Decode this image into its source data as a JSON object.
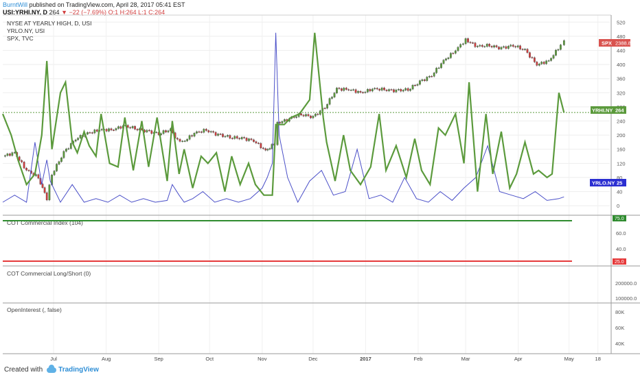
{
  "header": {
    "author": "BurntWill",
    "published": "published on TradingView.com, April 28, 2017 05:41 EST",
    "symbol": "USI:YRHI.NY, D",
    "last": "264",
    "change": "−22 (−7.69%)",
    "ohlc": "O:1 H:264 L:1 C:264"
  },
  "legend": {
    "main": "NYSE AT YEARLY HIGH, D, USI",
    "yrlo": "YRLO.NY, USI",
    "spx": "SPX, TVC"
  },
  "colors": {
    "green": "#5b9a3c",
    "blue": "#4a4fc8",
    "candle_up": "#5b9a3c",
    "candle_down": "#d23f3f",
    "spx_tag": "#d9534f",
    "yrlo_tag": "#2b2ed1",
    "level_high": "#2e8b2e",
    "level_low": "#e5393a"
  },
  "panes": {
    "cot_index": {
      "title": "COT Commercial Index (104)",
      "ticks": [
        "75.0",
        "60.0",
        "40.0",
        "25.0"
      ],
      "upper": 75,
      "lower": 25
    },
    "cot_longshort": {
      "title": "COT Commercial Long/Short (0)",
      "ticks": [
        "200000.0",
        "100000.0"
      ]
    },
    "open_interest": {
      "title": "OpenInterest (, false)",
      "ticks": [
        "80K",
        "60K",
        "40K"
      ]
    }
  },
  "chart_data": {
    "type": "line",
    "x_axis_labels": [
      "Jul",
      "Aug",
      "Sep",
      "Oct",
      "Nov",
      "Dec",
      "2017",
      "Feb",
      "Mar",
      "Apr",
      "May",
      "18"
    ],
    "x_range": [
      "2016-06-01",
      "2017-05-25"
    ],
    "y_ticks": [
      520,
      480,
      440,
      400,
      360,
      320,
      280,
      240,
      200,
      160,
      120,
      80,
      40,
      0
    ],
    "ylim": [
      -25,
      540
    ],
    "last_labels": {
      "spx": "2388.8",
      "yrhi": "YRHI.NY",
      "yrhi_value": "264",
      "yrlo": "YRLO.NY",
      "yrlo_value": "25"
    },
    "series": [
      {
        "name": "YRHI.NY",
        "dates": [
          "2016-06-01",
          "2016-06-06",
          "2016-06-10",
          "2016-06-15",
          "2016-06-20",
          "2016-06-24",
          "2016-06-27",
          "2016-06-30",
          "2016-07-05",
          "2016-07-08",
          "2016-07-12",
          "2016-07-15",
          "2016-07-19",
          "2016-07-22",
          "2016-07-26",
          "2016-07-29",
          "2016-08-03",
          "2016-08-08",
          "2016-08-12",
          "2016-08-17",
          "2016-08-22",
          "2016-08-26",
          "2016-08-31",
          "2016-09-06",
          "2016-09-09",
          "2016-09-13",
          "2016-09-16",
          "2016-09-21",
          "2016-09-26",
          "2016-09-30",
          "2016-10-05",
          "2016-10-10",
          "2016-10-14",
          "2016-10-19",
          "2016-10-24",
          "2016-10-28",
          "2016-11-02",
          "2016-11-07",
          "2016-11-09",
          "2016-11-14",
          "2016-11-18",
          "2016-11-23",
          "2016-11-29",
          "2016-12-02",
          "2016-12-07",
          "2016-12-09",
          "2016-12-14",
          "2016-12-19",
          "2016-12-23",
          "2016-12-29",
          "2017-01-04",
          "2017-01-09",
          "2017-01-13",
          "2017-01-19",
          "2017-01-25",
          "2017-01-30",
          "2017-02-03",
          "2017-02-08",
          "2017-02-13",
          "2017-02-17",
          "2017-02-23",
          "2017-02-28",
          "2017-03-03",
          "2017-03-08",
          "2017-03-13",
          "2017-03-17",
          "2017-03-22",
          "2017-03-27",
          "2017-03-31",
          "2017-04-05",
          "2017-04-10",
          "2017-04-13",
          "2017-04-18",
          "2017-04-21",
          "2017-04-25",
          "2017-04-28"
        ],
        "values": [
          260,
          200,
          130,
          60,
          90,
          200,
          410,
          160,
          320,
          350,
          180,
          150,
          210,
          170,
          140,
          260,
          120,
          110,
          250,
          100,
          240,
          110,
          250,
          70,
          240,
          90,
          160,
          50,
          140,
          120,
          150,
          40,
          140,
          60,
          120,
          60,
          30,
          30,
          230,
          230,
          250,
          260,
          300,
          490,
          250,
          180,
          70,
          200,
          100,
          60,
          110,
          260,
          100,
          170,
          80,
          190,
          100,
          60,
          220,
          200,
          260,
          120,
          350,
          40,
          260,
          90,
          210,
          50,
          90,
          180,
          90,
          100,
          80,
          90,
          320,
          264
        ]
      },
      {
        "name": "YRLO.NY",
        "dates": [
          "2016-06-01",
          "2016-06-08",
          "2016-06-15",
          "2016-06-20",
          "2016-06-24",
          "2016-06-27",
          "2016-06-29",
          "2016-07-05",
          "2016-07-12",
          "2016-07-19",
          "2016-07-26",
          "2016-08-02",
          "2016-08-09",
          "2016-08-16",
          "2016-08-23",
          "2016-08-30",
          "2016-09-06",
          "2016-09-09",
          "2016-09-13",
          "2016-09-16",
          "2016-09-21",
          "2016-09-27",
          "2016-10-04",
          "2016-10-11",
          "2016-10-18",
          "2016-10-25",
          "2016-11-01",
          "2016-11-04",
          "2016-11-07",
          "2016-11-09",
          "2016-11-11",
          "2016-11-16",
          "2016-11-22",
          "2016-11-29",
          "2016-12-06",
          "2016-12-13",
          "2016-12-20",
          "2016-12-27",
          "2017-01-03",
          "2017-01-10",
          "2017-01-17",
          "2017-01-24",
          "2017-01-31",
          "2017-02-07",
          "2017-02-14",
          "2017-02-21",
          "2017-02-28",
          "2017-03-07",
          "2017-03-14",
          "2017-03-21",
          "2017-03-28",
          "2017-04-04",
          "2017-04-11",
          "2017-04-18",
          "2017-04-25",
          "2017-04-28"
        ],
        "values": [
          10,
          30,
          10,
          180,
          60,
          130,
          70,
          10,
          60,
          10,
          20,
          10,
          30,
          10,
          20,
          10,
          15,
          60,
          30,
          10,
          20,
          40,
          10,
          20,
          10,
          20,
          50,
          80,
          120,
          490,
          200,
          80,
          10,
          70,
          100,
          30,
          40,
          160,
          20,
          30,
          10,
          80,
          20,
          10,
          40,
          15,
          50,
          80,
          170,
          40,
          30,
          20,
          40,
          15,
          20,
          25
        ]
      },
      {
        "name": "SPX",
        "dates": [
          "2016-06-01",
          "2016-06-08",
          "2016-06-15",
          "2016-06-22",
          "2016-06-27",
          "2016-06-30",
          "2016-07-07",
          "2016-07-14",
          "2016-07-21",
          "2016-07-28",
          "2016-08-04",
          "2016-08-11",
          "2016-08-18",
          "2016-08-25",
          "2016-09-01",
          "2016-09-08",
          "2016-09-12",
          "2016-09-15",
          "2016-09-22",
          "2016-09-29",
          "2016-10-06",
          "2016-10-13",
          "2016-10-20",
          "2016-10-27",
          "2016-11-03",
          "2016-11-08",
          "2016-11-10",
          "2016-11-17",
          "2016-11-24",
          "2016-12-01",
          "2016-12-08",
          "2016-12-15",
          "2016-12-22",
          "2016-12-29",
          "2017-01-05",
          "2017-01-12",
          "2017-01-19",
          "2017-01-26",
          "2017-02-02",
          "2017-02-09",
          "2017-02-16",
          "2017-02-23",
          "2017-03-01",
          "2017-03-08",
          "2017-03-15",
          "2017-03-22",
          "2017-03-29",
          "2017-04-05",
          "2017-04-12",
          "2017-04-19",
          "2017-04-26",
          "2017-04-28"
        ],
        "values": [
          140,
          150,
          100,
          80,
          20,
          90,
          150,
          190,
          205,
          215,
          215,
          225,
          220,
          210,
          205,
          215,
          185,
          180,
          205,
          215,
          200,
          195,
          190,
          185,
          155,
          175,
          235,
          245,
          260,
          250,
          280,
          330,
          330,
          320,
          330,
          330,
          325,
          330,
          350,
          370,
          410,
          440,
          470,
          450,
          455,
          445,
          455,
          440,
          400,
          410,
          455,
          465
        ]
      }
    ]
  }
}
